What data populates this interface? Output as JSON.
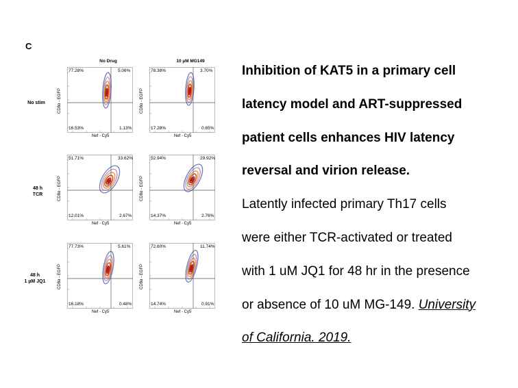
{
  "figure": {
    "panel_label": "C",
    "columns": [
      "No Drug",
      "10 µM MG149"
    ],
    "rows": [
      "No stim",
      "48 h\nTCR",
      "48 h\n1 µM JQ1"
    ],
    "x_axis_label": "Nef - Cy5",
    "y_axis_label": "CD8α - EGFP",
    "quadrants": [
      [
        {
          "ul": "77.28%",
          "ur": "5.06%",
          "ll": "16.53%",
          "lr": "1.13%"
        },
        {
          "ul": "78.38%",
          "ur": "3.70%",
          "ll": "17.28%",
          "lr": "0.65%"
        }
      ],
      [
        {
          "ul": "51.71%",
          "ur": "33.62%",
          "ll": "12.01%",
          "lr": "2.67%"
        },
        {
          "ul": "52.94%",
          "ur": "29.92%",
          "ll": "14.37%",
          "lr": "2.76%"
        }
      ],
      [
        {
          "ul": "77.73%",
          "ur": "5.61%",
          "ll": "16.18%",
          "lr": "0.48%"
        },
        {
          "ul": "72.60%",
          "ur": "11.74%",
          "ll": "14.74%",
          "lr": "0.91%"
        }
      ]
    ],
    "contour_colors": [
      "#6f7fb5",
      "#c28fbf",
      "#e0a060",
      "#d8502a",
      "#b0201a"
    ]
  },
  "caption": {
    "lines": [
      "Inhibition of KAT5 in a primary cell",
      "latency model and ART-suppressed",
      "patient cells enhances HIV latency",
      "reversal and virion release."
    ],
    "body_lines": [
      "Latently infected primary Th17 cells",
      "were either TCR-activated or treated",
      "with 1 uM JQ1 for 48 hr in the presence",
      "or absence of 10 uM MG-149. "
    ],
    "link_1": "University",
    "link_2": "of California. 2019."
  }
}
